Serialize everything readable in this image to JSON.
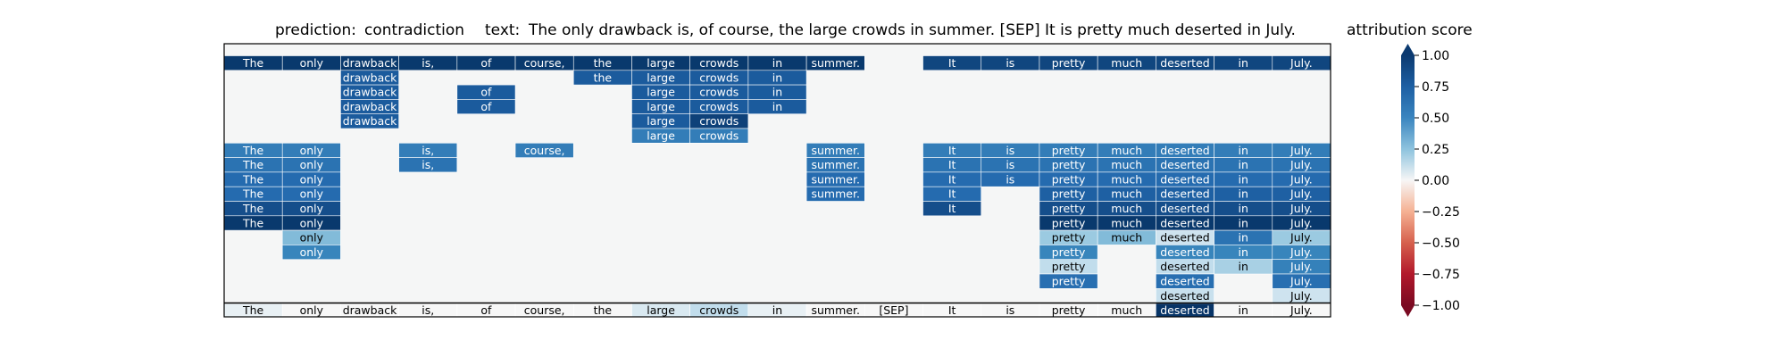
{
  "chart_data": {
    "type": "heatmap",
    "prediction_label": "prediction:",
    "prediction": "contradiction",
    "text_label": "text:",
    "text": "The only drawback is, of course, the large crowds in summer. [SEP] It is pretty much deserted in July.",
    "colorbar_title": "attribution score",
    "colormap": "RdBu",
    "clim": [
      -1.0,
      1.0
    ],
    "colorbar_ticks": [
      "1.00",
      "0.75",
      "0.50",
      "0.25",
      "0.00",
      "−0.25",
      "−0.50",
      "−0.75",
      "−1.00"
    ],
    "tokens": [
      "The",
      "only",
      "drawback",
      "is,",
      "of",
      "course,",
      "the",
      "large",
      "crowds",
      "in",
      "summer.",
      "[SEP]",
      "It",
      "is",
      "pretty",
      "much",
      "deserted",
      "in",
      "July."
    ],
    "rows": [
      {
        "cells": [
          [
            0,
            0.96
          ],
          [
            1,
            0.96
          ],
          [
            2,
            0.96
          ],
          [
            3,
            0.96
          ],
          [
            4,
            0.96
          ],
          [
            5,
            0.96
          ],
          [
            6,
            0.96
          ],
          [
            7,
            0.96
          ],
          [
            8,
            0.96
          ],
          [
            9,
            0.96
          ],
          [
            10,
            0.96
          ],
          [
            12,
            0.9
          ],
          [
            13,
            0.9
          ],
          [
            14,
            0.9
          ],
          [
            15,
            0.9
          ],
          [
            16,
            0.9
          ],
          [
            17,
            0.9
          ],
          [
            18,
            0.9
          ]
        ]
      },
      {
        "cells": [
          [
            2,
            0.8
          ],
          [
            6,
            0.8
          ],
          [
            7,
            0.8
          ],
          [
            8,
            0.8
          ],
          [
            9,
            0.8
          ]
        ]
      },
      {
        "cells": [
          [
            2,
            0.8
          ],
          [
            4,
            0.8
          ],
          [
            7,
            0.8
          ],
          [
            8,
            0.8
          ],
          [
            9,
            0.8
          ]
        ]
      },
      {
        "cells": [
          [
            2,
            0.8
          ],
          [
            4,
            0.8
          ],
          [
            7,
            0.8
          ],
          [
            8,
            0.8
          ],
          [
            9,
            0.8
          ]
        ]
      },
      {
        "cells": [
          [
            2,
            0.8
          ],
          [
            7,
            0.8
          ],
          [
            8,
            0.92
          ]
        ]
      },
      {
        "cells": [
          [
            7,
            0.62
          ],
          [
            8,
            0.62
          ]
        ]
      },
      {
        "cells": [
          [
            0,
            0.62
          ],
          [
            1,
            0.62
          ],
          [
            3,
            0.62
          ],
          [
            5,
            0.62
          ],
          [
            10,
            0.62
          ],
          [
            12,
            0.62
          ],
          [
            13,
            0.62
          ],
          [
            14,
            0.62
          ],
          [
            15,
            0.62
          ],
          [
            16,
            0.62
          ],
          [
            17,
            0.62
          ],
          [
            18,
            0.62
          ]
        ]
      },
      {
        "cells": [
          [
            0,
            0.68
          ],
          [
            1,
            0.68
          ],
          [
            3,
            0.68
          ],
          [
            10,
            0.68
          ],
          [
            12,
            0.68
          ],
          [
            13,
            0.68
          ],
          [
            14,
            0.68
          ],
          [
            15,
            0.68
          ],
          [
            16,
            0.68
          ],
          [
            17,
            0.68
          ],
          [
            18,
            0.68
          ]
        ]
      },
      {
        "cells": [
          [
            0,
            0.72
          ],
          [
            1,
            0.72
          ],
          [
            10,
            0.72
          ],
          [
            12,
            0.72
          ],
          [
            13,
            0.72
          ],
          [
            14,
            0.72
          ],
          [
            15,
            0.72
          ],
          [
            16,
            0.72
          ],
          [
            17,
            0.72
          ],
          [
            18,
            0.72
          ]
        ]
      },
      {
        "cells": [
          [
            0,
            0.72
          ],
          [
            1,
            0.72
          ],
          [
            10,
            0.72
          ],
          [
            12,
            0.72
          ],
          [
            14,
            0.78
          ],
          [
            15,
            0.78
          ],
          [
            16,
            0.78
          ],
          [
            17,
            0.78
          ],
          [
            18,
            0.78
          ]
        ]
      },
      {
        "cells": [
          [
            0,
            0.86
          ],
          [
            1,
            0.86
          ],
          [
            12,
            0.86
          ],
          [
            14,
            0.86
          ],
          [
            15,
            0.86
          ],
          [
            16,
            0.86
          ],
          [
            17,
            0.86
          ],
          [
            18,
            0.86
          ]
        ]
      },
      {
        "cells": [
          [
            0,
            0.96
          ],
          [
            1,
            0.96
          ],
          [
            14,
            0.96
          ],
          [
            15,
            0.96
          ],
          [
            16,
            0.96
          ],
          [
            17,
            0.96
          ],
          [
            18,
            0.96
          ]
        ]
      },
      {
        "cells": [
          [
            1,
            0.3
          ],
          [
            14,
            0.22
          ],
          [
            15,
            0.3
          ],
          [
            16,
            0.06
          ],
          [
            17,
            0.68
          ],
          [
            18,
            0.22
          ]
        ]
      },
      {
        "cells": [
          [
            1,
            0.58
          ],
          [
            14,
            0.58
          ],
          [
            16,
            0.58
          ],
          [
            17,
            0.58
          ],
          [
            18,
            0.58
          ]
        ]
      },
      {
        "cells": [
          [
            14,
            0.1
          ],
          [
            16,
            0.1
          ],
          [
            17,
            0.18
          ],
          [
            18,
            0.6
          ]
        ]
      },
      {
        "cells": [
          [
            14,
            0.7
          ],
          [
            16,
            0.7
          ],
          [
            18,
            0.7
          ]
        ]
      },
      {
        "cells": [
          [
            16,
            0.08
          ],
          [
            18,
            0.06
          ]
        ]
      },
      {
        "cells": [
          [
            18,
            0.1
          ]
        ]
      }
    ],
    "bottom_row": [
      0.02,
      0.0,
      0.0,
      0.0,
      0.0,
      0.0,
      0.0,
      0.04,
      0.1,
      0.02,
      0.0,
      0.0,
      0.0,
      0.0,
      0.0,
      0.0,
      0.98,
      0.0,
      0.0
    ]
  }
}
